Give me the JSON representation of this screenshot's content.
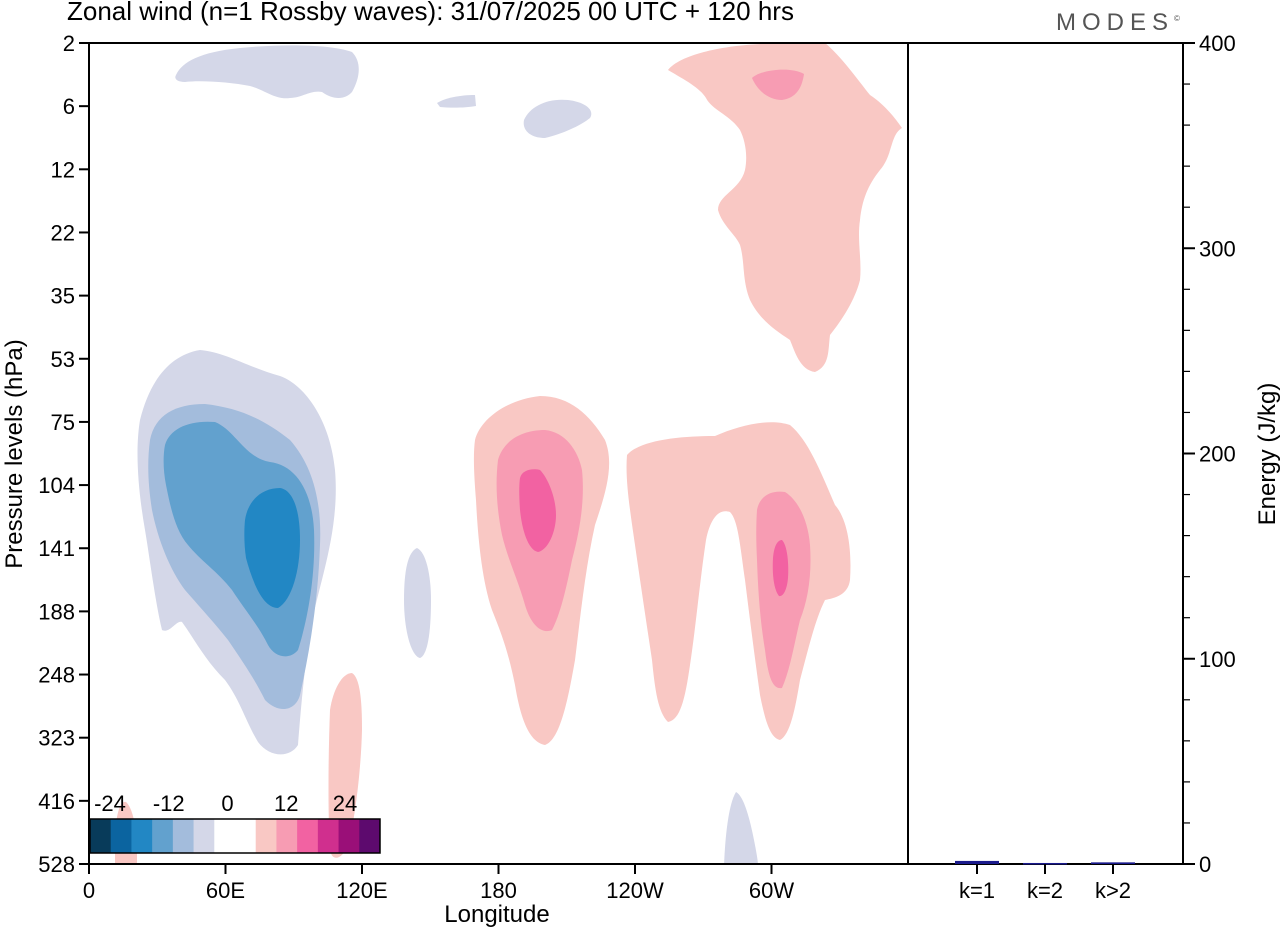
{
  "header": {
    "title": "Zonal wind (n=1 Rossby waves):  31/07/2025  00 UTC  + 120 hrs",
    "brand": "MODES",
    "brand_mark": "©"
  },
  "chart_data": [
    {
      "type": "heatmap",
      "title": "Zonal wind (n=1 Rossby waves):  31/07/2025  00 UTC  + 120 hrs",
      "xlabel": "Longitude",
      "ylabel": "Pressure levels (hPa)",
      "x_ticks": [
        "0",
        "60E",
        "120E",
        "180",
        "120W",
        "60W"
      ],
      "x_tick_values": [
        0,
        60,
        120,
        180,
        240,
        300
      ],
      "xlim": [
        0,
        360
      ],
      "y_ticks": [
        "2",
        "6",
        "12",
        "22",
        "35",
        "53",
        "75",
        "104",
        "141",
        "188",
        "248",
        "323",
        "416",
        "528"
      ],
      "y_axis_inverted": true,
      "colorbar": {
        "labels": [
          "-24",
          "-12",
          "0",
          "12",
          "24"
        ],
        "colors": [
          "#083b5a",
          "#0b64a0",
          "#2287c4",
          "#62a1ce",
          "#a3bcdc",
          "#d4d7e8",
          "#ffffff",
          "#ffffff",
          "#f9c8c4",
          "#f79cb3",
          "#f262a2",
          "#d02f8e",
          "#9a0f78",
          "#5d0a6e"
        ]
      },
      "grid": false
    },
    {
      "type": "bar",
      "categories": [
        "k=1",
        "k=2",
        "k>2"
      ],
      "values": [
        1.5,
        0.5,
        0.8
      ],
      "ylabel": "Energy (J/kg)",
      "ylim": [
        0,
        400
      ],
      "y_ticks": [
        "0",
        "100",
        "200",
        "300",
        "400"
      ],
      "bar_color": "#1a1a8c"
    }
  ]
}
